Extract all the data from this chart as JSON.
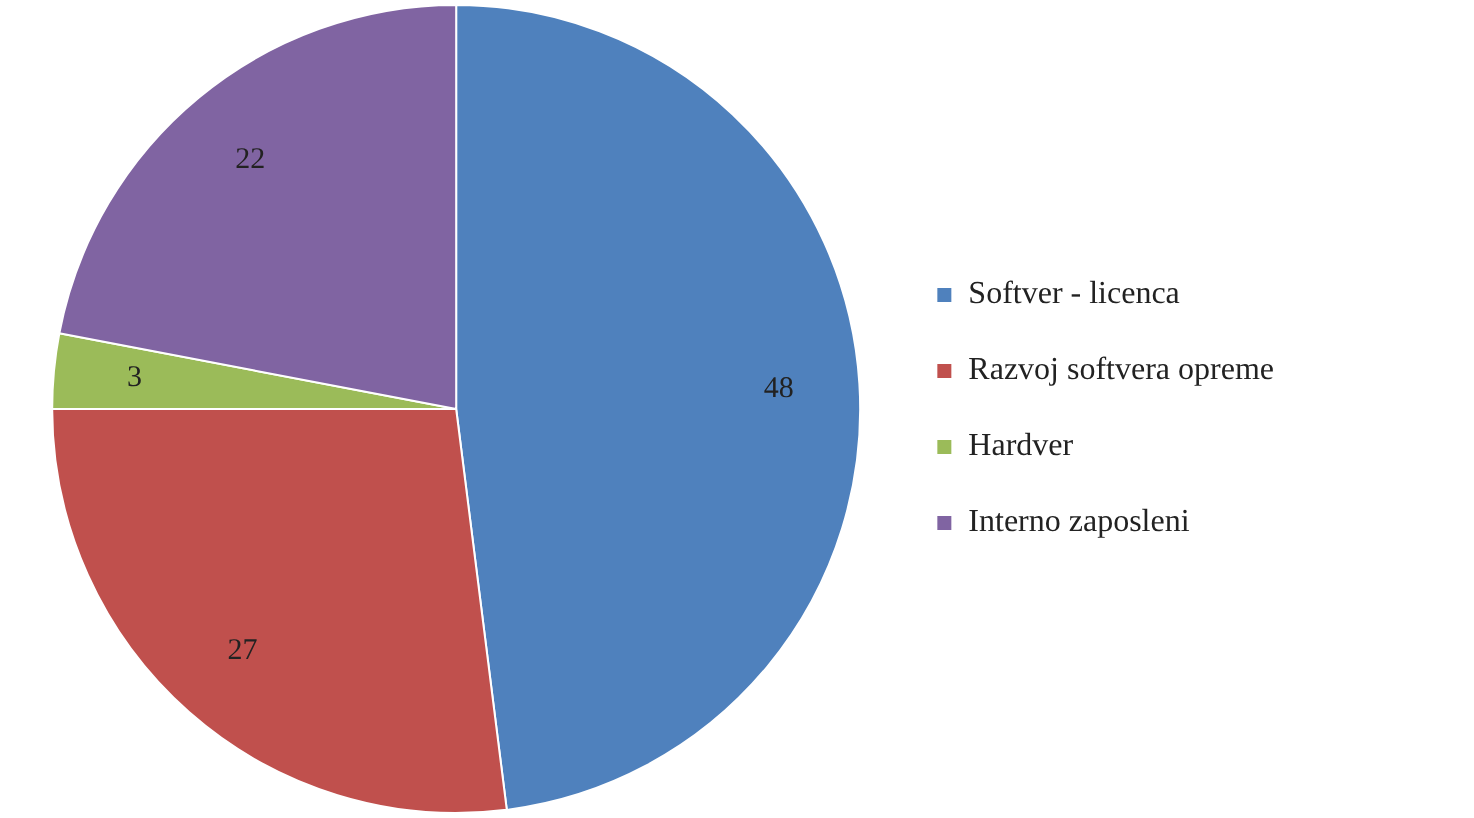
{
  "chart_data": {
    "type": "pie",
    "categories": [
      "Softver - licenca",
      "Razvoj softvera opreme",
      "Hardver",
      "Interno zaposleni"
    ],
    "values": [
      48,
      27,
      3,
      22
    ],
    "colors": [
      "#4f81bd",
      "#c0504d",
      "#9bbb59",
      "#8064a2"
    ],
    "data_labels": true,
    "legend": "right"
  }
}
